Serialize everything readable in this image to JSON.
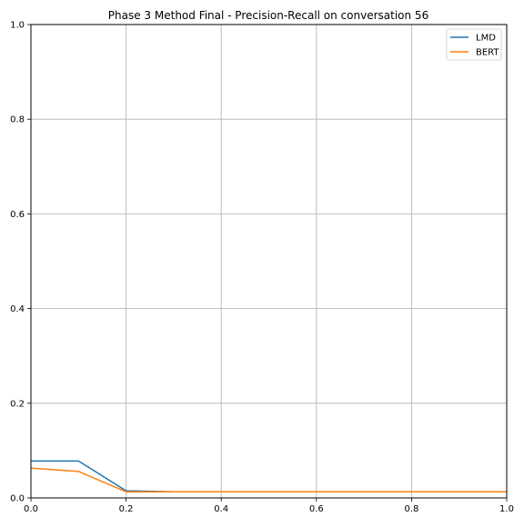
{
  "chart_data": {
    "type": "line",
    "title": "Phase 3 Method Final - Precision-Recall on conversation 56",
    "xlabel": "",
    "ylabel": "",
    "xlim": [
      0,
      1
    ],
    "ylim": [
      0,
      1
    ],
    "xticks": [
      0.0,
      0.2,
      0.4,
      0.6,
      0.8,
      1.0
    ],
    "yticks": [
      0.0,
      0.2,
      0.4,
      0.6,
      0.8,
      1.0
    ],
    "xtick_labels": [
      "0.0",
      "0.2",
      "0.4",
      "0.6",
      "0.8",
      "1.0"
    ],
    "ytick_labels": [
      "0.0",
      "0.2",
      "0.4",
      "0.6",
      "0.8",
      "1.0"
    ],
    "grid": true,
    "legend_position": "top-right",
    "x": [
      0.0,
      0.1,
      0.2,
      0.3,
      0.4,
      0.5,
      0.6,
      0.7,
      0.8,
      0.9,
      1.0
    ],
    "series": [
      {
        "name": "LMD",
        "color": "#1f77b4",
        "values": [
          0.078,
          0.078,
          0.015,
          0.013,
          0.013,
          0.013,
          0.013,
          0.013,
          0.013,
          0.013,
          0.013
        ]
      },
      {
        "name": "BERT",
        "color": "#ff7f0e",
        "values": [
          0.063,
          0.056,
          0.013,
          0.013,
          0.013,
          0.013,
          0.013,
          0.013,
          0.013,
          0.013,
          0.013
        ]
      }
    ]
  }
}
